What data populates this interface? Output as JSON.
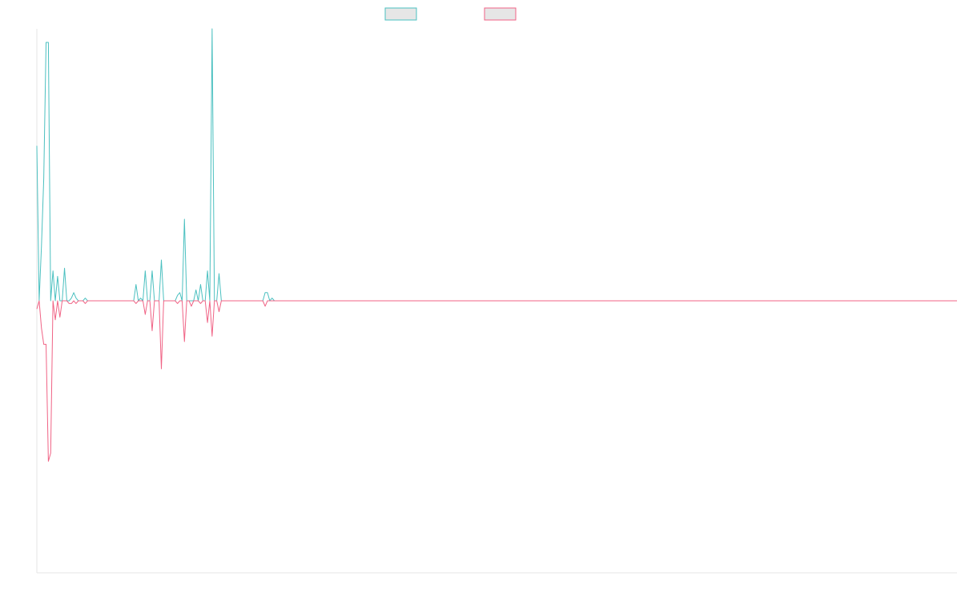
{
  "chart_data": {
    "type": "line",
    "title": "",
    "xlabel": "",
    "ylabel": "",
    "legend_position": "top-center",
    "grid": false,
    "ylim": [
      -100,
      100
    ],
    "series": [
      {
        "name": "",
        "color": "#4bc0c0",
        "fill": "#e6e6e6",
        "values": [
          57,
          0,
          20,
          45,
          95,
          95,
          0,
          11,
          0,
          9,
          0,
          0,
          12,
          0,
          0,
          1,
          3,
          1,
          0,
          0,
          0,
          1,
          0,
          0,
          0,
          0,
          0,
          0,
          0,
          0,
          0,
          0,
          0,
          0,
          0,
          0,
          0,
          0,
          0,
          0,
          0,
          0,
          0,
          6,
          0,
          1,
          0,
          11,
          0,
          0,
          11,
          0,
          0,
          0,
          15,
          0,
          0,
          0,
          0,
          0,
          0,
          2,
          3,
          0,
          30,
          0,
          0,
          0,
          0,
          4,
          0,
          6,
          0,
          0,
          11,
          0,
          100,
          0,
          0,
          10,
          0,
          0,
          0,
          0,
          0,
          0,
          0,
          0,
          0,
          0,
          0,
          0,
          0,
          0,
          0,
          0,
          0,
          0,
          0,
          3,
          3,
          0,
          1,
          0,
          0,
          0,
          0,
          0,
          0,
          0,
          0,
          0,
          0,
          0,
          0,
          0,
          0,
          0,
          0,
          0,
          0,
          0,
          0,
          0,
          0,
          0,
          0,
          0,
          0,
          0,
          0,
          0,
          0,
          0,
          0,
          0,
          0,
          0,
          0,
          0,
          0,
          0,
          0,
          0,
          0,
          0,
          0,
          0,
          0,
          0,
          0,
          0,
          0,
          0,
          0,
          0,
          0,
          0,
          0,
          0,
          0,
          0,
          0,
          0,
          0,
          0,
          0,
          0,
          0,
          0,
          0,
          0,
          0,
          0,
          0,
          0,
          0,
          0,
          0,
          0,
          0,
          0,
          0,
          0,
          0,
          0,
          0,
          0,
          0,
          0,
          0,
          0,
          0,
          0,
          0,
          0,
          0,
          0,
          0,
          0,
          0,
          0,
          0,
          0,
          0,
          0,
          0,
          0,
          0,
          0,
          0,
          0,
          0,
          0,
          0,
          0,
          0,
          0,
          0,
          0,
          0,
          0,
          0,
          0,
          0,
          0,
          0,
          0,
          0,
          0,
          0,
          0,
          0,
          0,
          0,
          0,
          0,
          0,
          0,
          0,
          0,
          0,
          0,
          0,
          0,
          0,
          0,
          0,
          0,
          0,
          0,
          0,
          0,
          0,
          0,
          0,
          0,
          0,
          0,
          0,
          0,
          0,
          0,
          0,
          0,
          0,
          0,
          0,
          0,
          0,
          0,
          0,
          0,
          0,
          0,
          0,
          0,
          0,
          0,
          0,
          0,
          0,
          0,
          0,
          0,
          0,
          0,
          0,
          0,
          0,
          0,
          0,
          0,
          0,
          0,
          0,
          0,
          0,
          0,
          0,
          0,
          0,
          0,
          0,
          0,
          0,
          0,
          0,
          0,
          0,
          0,
          0,
          0,
          0,
          0,
          0,
          0,
          0,
          0,
          0,
          0,
          0,
          0,
          0,
          0,
          0,
          0,
          0,
          0,
          0,
          0,
          0,
          0,
          0,
          0,
          0,
          0,
          0,
          0,
          0,
          0,
          0,
          0,
          0,
          0,
          0,
          0,
          0,
          0,
          0,
          0,
          0,
          0,
          0,
          0,
          0,
          0,
          0,
          0,
          0,
          0,
          0,
          0,
          0,
          0,
          0,
          0,
          0,
          0,
          0,
          0,
          0,
          0,
          0,
          0,
          0,
          0,
          0,
          0,
          0,
          0,
          0,
          0,
          0,
          0,
          0,
          0,
          0,
          0,
          0,
          0,
          0,
          0,
          0,
          0,
          0,
          0,
          0,
          0,
          0
        ]
      },
      {
        "name": "",
        "color": "#f06385",
        "fill": "#e6e6e6",
        "values": [
          -3,
          0,
          -10,
          -16,
          -16,
          -59,
          -56,
          0,
          -7,
          0,
          -6,
          0,
          0,
          0,
          -1,
          -1,
          0,
          -1,
          0,
          0,
          0,
          -1,
          0,
          0,
          0,
          0,
          0,
          0,
          0,
          0,
          0,
          0,
          0,
          0,
          0,
          0,
          0,
          0,
          0,
          0,
          0,
          0,
          0,
          -1,
          0,
          0,
          0,
          -5,
          0,
          0,
          -11,
          0,
          0,
          0,
          -25,
          0,
          0,
          0,
          0,
          0,
          0,
          -1,
          0,
          0,
          -15,
          0,
          0,
          -2,
          0,
          0,
          0,
          -1,
          0,
          0,
          -8,
          0,
          -13,
          0,
          0,
          -4,
          0,
          0,
          0,
          0,
          0,
          0,
          0,
          0,
          0,
          0,
          0,
          0,
          0,
          0,
          0,
          0,
          0,
          0,
          0,
          -2,
          0,
          0,
          0,
          0,
          0,
          0,
          0,
          0,
          0,
          0,
          0,
          0,
          0,
          0,
          0,
          0,
          0,
          0,
          0,
          0,
          0,
          0,
          0,
          0,
          0,
          0,
          0,
          0,
          0,
          0,
          0,
          0,
          0,
          0,
          0,
          0,
          0,
          0,
          0,
          0,
          0,
          0,
          0,
          0,
          0,
          0,
          0,
          0,
          0,
          0,
          0,
          0,
          0,
          0,
          0,
          0,
          0,
          0,
          0,
          0,
          0,
          0,
          0,
          0,
          0,
          0,
          0,
          0,
          0,
          0,
          0,
          0,
          0,
          0,
          0,
          0,
          0,
          0,
          0,
          0,
          0,
          0,
          0,
          0,
          0,
          0,
          0,
          0,
          0,
          0,
          0,
          0,
          0,
          0,
          0,
          0,
          0,
          0,
          0,
          0,
          0,
          0,
          0,
          0,
          0,
          0,
          0,
          0,
          0,
          0,
          0,
          0,
          0,
          0,
          0,
          0,
          0,
          0,
          0,
          0,
          0,
          0,
          0,
          0,
          0,
          0,
          0,
          0,
          0,
          0,
          0,
          0,
          0,
          0,
          0,
          0,
          0,
          0,
          0,
          0,
          0,
          0,
          0,
          0,
          0,
          0,
          0,
          0,
          0,
          0,
          0,
          0,
          0,
          0,
          0,
          0,
          0,
          0,
          0,
          0,
          0,
          0,
          0,
          0,
          0,
          0,
          0,
          0,
          0,
          0,
          0,
          0,
          0,
          0,
          0,
          0,
          0,
          0,
          0,
          0,
          0,
          0,
          0,
          0,
          0,
          0,
          0,
          0,
          0,
          0,
          0,
          0,
          0,
          0,
          0,
          0,
          0,
          0,
          0,
          0,
          0,
          0,
          0,
          0,
          0,
          0,
          0,
          0,
          0,
          0,
          0,
          0,
          0,
          0,
          0,
          0,
          0,
          0,
          0,
          0,
          0,
          0,
          0,
          0,
          0,
          0,
          0,
          0,
          0,
          0,
          0,
          0,
          0,
          0,
          0,
          0,
          0,
          0,
          0,
          0,
          0,
          0,
          0,
          0,
          0,
          0,
          0,
          0,
          0,
          0,
          0,
          0,
          0,
          0,
          0,
          0,
          0,
          0,
          0,
          0,
          0,
          0,
          0,
          0,
          0,
          0,
          0,
          0,
          0,
          0,
          0,
          0,
          0,
          0,
          0,
          0,
          0,
          0,
          0,
          0,
          0,
          0,
          0,
          0,
          0,
          0,
          0,
          0,
          0,
          0,
          0,
          0,
          0,
          0,
          0,
          0,
          0,
          0,
          0,
          0
        ]
      }
    ]
  }
}
